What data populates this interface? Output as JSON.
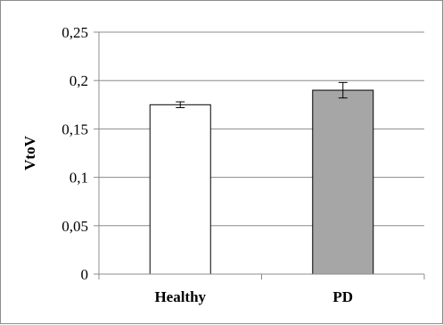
{
  "chart_data": {
    "type": "bar",
    "categories": [
      "Healthy",
      "PD"
    ],
    "values": [
      0.175,
      0.19
    ],
    "error": [
      0.003,
      0.008
    ],
    "bar_colors": [
      "#ffffff",
      "#a6a6a6"
    ],
    "title": "",
    "xlabel": "",
    "ylabel": "VtoV",
    "ylim": [
      0,
      0.25
    ],
    "yticks": [
      0,
      0.05,
      0.1,
      0.15,
      0.2,
      0.25
    ],
    "ytick_labels": [
      "0",
      "0,05",
      "0,1",
      "0,15",
      "0,2",
      "0,25"
    ],
    "grid": true
  }
}
